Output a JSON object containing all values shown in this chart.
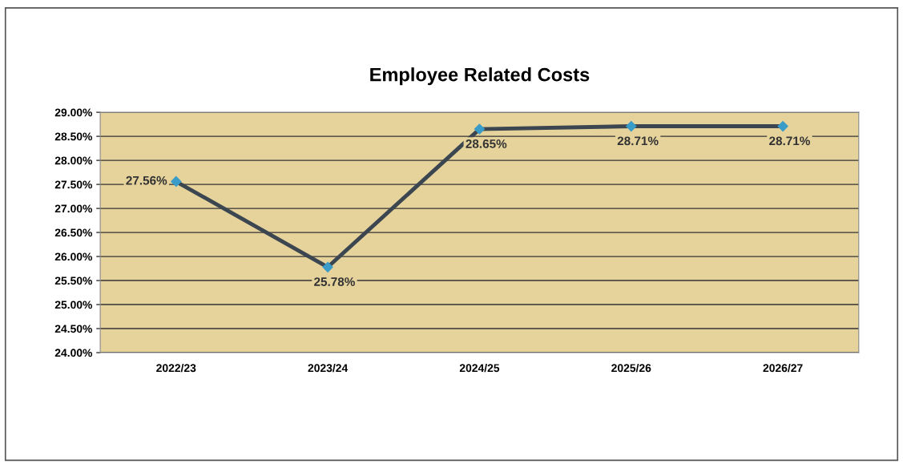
{
  "chart_data": {
    "type": "line",
    "title": "Employee Related Costs",
    "categories": [
      "2022/23",
      "2023/24",
      "2024/25",
      "2025/26",
      "2026/27"
    ],
    "series": [
      {
        "color": "#3b4650",
        "values": [
          27.56,
          25.78,
          28.65,
          28.71,
          28.71
        ],
        "value_labels": [
          "27.56%",
          "25.78%",
          "28.65%",
          "28.71%",
          "28.71%"
        ]
      }
    ],
    "ylim": [
      24,
      29
    ],
    "yticks": [
      {
        "value": 24,
        "label": "24.00%"
      },
      {
        "value": 24.5,
        "label": "24.50%"
      },
      {
        "value": 25,
        "label": "25.00%"
      },
      {
        "value": 25.5,
        "label": "25.50%"
      },
      {
        "value": 26,
        "label": "26.00%"
      },
      {
        "value": 26.5,
        "label": "26.50%"
      },
      {
        "value": 27,
        "label": "27.00%"
      },
      {
        "value": 27.5,
        "label": "27.50%"
      },
      {
        "value": 28,
        "label": "28.00%"
      },
      {
        "value": 28.5,
        "label": "28.50%"
      },
      {
        "value": 29,
        "label": "29.00%"
      }
    ],
    "grid": "y",
    "marker": "diamond",
    "line_style": "solid"
  }
}
